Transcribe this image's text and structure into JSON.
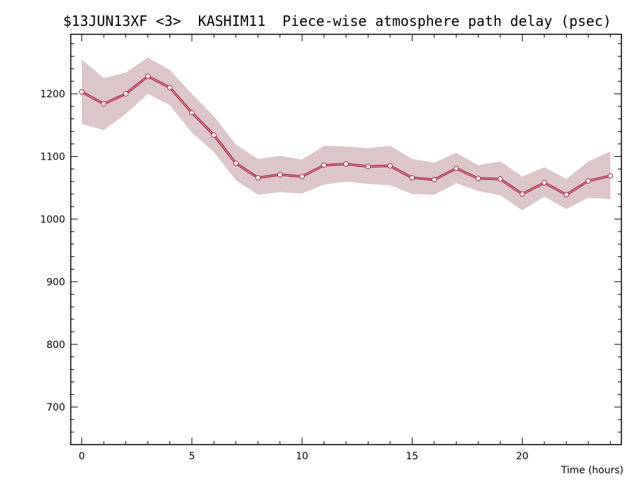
{
  "chart_data": {
    "type": "line",
    "title": "$13JUN13XF <3>  KASHIM11  Piece-wise atmosphere path delay (psec)",
    "xlabel": "Time (hours)",
    "ylabel": "",
    "xlim": [
      -0.5,
      24.5
    ],
    "ylim": [
      640,
      1295
    ],
    "x_ticks": [
      0,
      5,
      10,
      15,
      20
    ],
    "y_ticks": [
      700,
      800,
      900,
      1000,
      1100,
      1200
    ],
    "x_minor_step": 1,
    "y_minor_step": 20,
    "grid": false,
    "legend": "none",
    "colors": {
      "line": "#b0233f",
      "band": "#dcc6ca",
      "point_fill": "#ffffff"
    },
    "series": [
      {
        "x": [
          0,
          1,
          2,
          3,
          4,
          5,
          6,
          7,
          8,
          9,
          10,
          11,
          12,
          13,
          14,
          15,
          16,
          17,
          18,
          19,
          20,
          21,
          22,
          23,
          24
        ],
        "values": [
          1203,
          1184,
          1200,
          1228,
          1210,
          1170,
          1134,
          1089,
          1066,
          1071,
          1068,
          1086,
          1088,
          1084,
          1085,
          1066,
          1063,
          1081,
          1065,
          1064,
          1040,
          1058,
          1039,
          1061,
          1069
        ],
        "upper": [
          1255,
          1225,
          1234,
          1258,
          1238,
          1200,
          1164,
          1119,
          1096,
          1101,
          1095,
          1117,
          1116,
          1113,
          1117,
          1096,
          1090,
          1106,
          1086,
          1092,
          1068,
          1083,
          1064,
          1092,
          1108
        ],
        "lower": [
          1152,
          1142,
          1168,
          1200,
          1182,
          1138,
          1107,
          1062,
          1039,
          1043,
          1041,
          1055,
          1060,
          1056,
          1054,
          1040,
          1039,
          1057,
          1045,
          1038,
          1014,
          1036,
          1016,
          1034,
          1032
        ]
      }
    ]
  }
}
